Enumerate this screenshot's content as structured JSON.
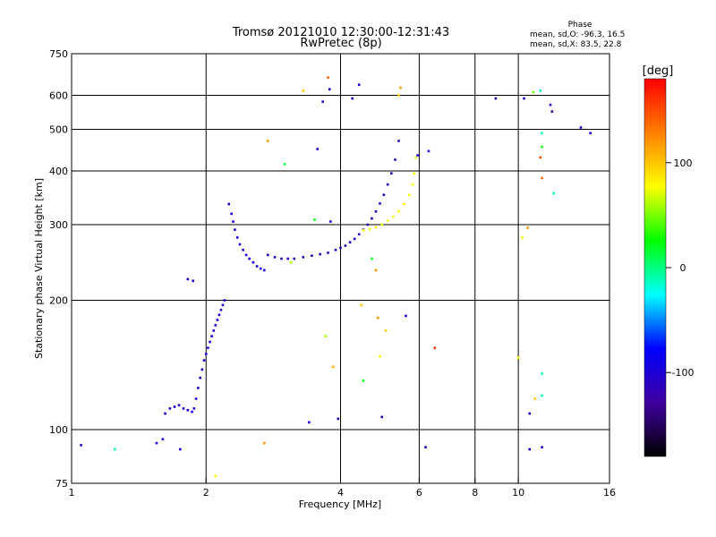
{
  "chart_data": {
    "type": "scatter",
    "title": "Tromsø 20121010 12:30:00-12:31:43",
    "subtitle": "RwPretec (8p)",
    "xlabel": "Frequency [MHz]",
    "ylabel": "Stationary phase Virtual Height [km]",
    "x_scale": "log",
    "y_scale": "log",
    "xlim": [
      1,
      16
    ],
    "ylim": [
      75,
      750
    ],
    "x_ticks": [
      1,
      2,
      4,
      6,
      8,
      10,
      16
    ],
    "x_tick_labels": [
      "1",
      "2",
      "4",
      "6",
      "8",
      "10",
      "16"
    ],
    "x_grid": [
      2,
      4,
      6,
      8,
      10
    ],
    "y_ticks": [
      75,
      100,
      200,
      300,
      400,
      500,
      600,
      750
    ],
    "y_tick_labels": [
      "75",
      "100",
      "200",
      "300",
      "400",
      "500",
      "600",
      "750"
    ],
    "y_grid": [
      100,
      200,
      300,
      400,
      500,
      600
    ],
    "grid": true,
    "phase_stats": {
      "header": "Phase",
      "line_o": "mean, sd,O: -96.3, 16.5",
      "line_x": "mean, sd,X:  83.5, 22.8"
    },
    "colorbar": {
      "label": "[deg]",
      "range": [
        -180,
        180
      ],
      "ticks": [
        100,
        0,
        -100
      ],
      "tick_labels": [
        "100",
        "0",
        "-100"
      ],
      "colors": [
        "#ff0000",
        "#ff8000",
        "#ffff00",
        "#00ff00",
        "#00ffff",
        "#0000ff",
        "#4000a0",
        "#000000"
      ]
    },
    "traces": [
      {
        "x": [
          1.62,
          1.66,
          1.7,
          1.74,
          1.78,
          1.82,
          1.86,
          1.88,
          1.9,
          1.92,
          1.94,
          1.96,
          1.98,
          2.0,
          2.02,
          2.04,
          2.06,
          2.08,
          2.1,
          2.12,
          2.14,
          2.16,
          2.18,
          2.2
        ],
        "y": [
          109,
          112,
          113,
          114,
          112,
          111,
          110,
          112,
          118,
          125,
          132,
          138,
          145,
          150,
          155,
          160,
          165,
          170,
          175,
          180,
          185,
          190,
          195,
          200
        ],
        "phase": -100
      },
      {
        "x": [
          2.25,
          2.28,
          2.3,
          2.32,
          2.35,
          2.38,
          2.42,
          2.46,
          2.5,
          2.55,
          2.6,
          2.65,
          2.7
        ],
        "y": [
          335,
          318,
          305,
          292,
          280,
          270,
          262,
          255,
          250,
          245,
          240,
          237,
          235
        ],
        "phase": -95
      },
      {
        "x": [
          2.75,
          2.85,
          2.95,
          3.05,
          3.15,
          3.3,
          3.45,
          3.6,
          3.75,
          3.9,
          4.0,
          4.1,
          4.2,
          4.3,
          4.4,
          4.5,
          4.6,
          4.7,
          4.8,
          4.9,
          5.0,
          5.1,
          5.2,
          5.3,
          5.4
        ],
        "y": [
          255,
          252,
          250,
          250,
          250,
          252,
          254,
          256,
          258,
          262,
          265,
          268,
          273,
          278,
          285,
          292,
          300,
          310,
          322,
          336,
          352,
          372,
          395,
          425,
          470
        ],
        "phase": -115
      },
      {
        "x": [
          4.5,
          4.65,
          4.8,
          4.95,
          5.1,
          5.25,
          5.4,
          5.55,
          5.7,
          5.8,
          5.85,
          5.9
        ],
        "y": [
          291,
          293,
          296,
          300,
          306,
          313,
          322,
          335,
          352,
          372,
          395,
          430
        ],
        "phase": 75
      }
    ],
    "points": [
      {
        "x": 1.05,
        "y": 92,
        "phase": -100
      },
      {
        "x": 1.25,
        "y": 90,
        "phase": -10
      },
      {
        "x": 1.55,
        "y": 93,
        "phase": -100
      },
      {
        "x": 1.6,
        "y": 95,
        "phase": -100
      },
      {
        "x": 1.75,
        "y": 90,
        "phase": -100
      },
      {
        "x": 1.82,
        "y": 224,
        "phase": -100
      },
      {
        "x": 1.87,
        "y": 222,
        "phase": -100
      },
      {
        "x": 2.1,
        "y": 78,
        "phase": 80
      },
      {
        "x": 2.7,
        "y": 93,
        "phase": 120
      },
      {
        "x": 2.75,
        "y": 470,
        "phase": 120
      },
      {
        "x": 3.0,
        "y": 415,
        "phase": 10
      },
      {
        "x": 3.1,
        "y": 245,
        "phase": 60
      },
      {
        "x": 3.4,
        "y": 104,
        "phase": -100
      },
      {
        "x": 3.5,
        "y": 308,
        "phase": 20
      },
      {
        "x": 3.55,
        "y": 450,
        "phase": -100
      },
      {
        "x": 3.75,
        "y": 660,
        "phase": 140
      },
      {
        "x": 3.78,
        "y": 620,
        "phase": -100
      },
      {
        "x": 3.65,
        "y": 580,
        "phase": -100
      },
      {
        "x": 3.3,
        "y": 615,
        "phase": 100
      },
      {
        "x": 3.7,
        "y": 165,
        "phase": 60
      },
      {
        "x": 3.8,
        "y": 305,
        "phase": -100
      },
      {
        "x": 3.85,
        "y": 140,
        "phase": 110
      },
      {
        "x": 3.95,
        "y": 106,
        "phase": -110
      },
      {
        "x": 4.25,
        "y": 590,
        "phase": -100
      },
      {
        "x": 4.4,
        "y": 635,
        "phase": -100
      },
      {
        "x": 4.45,
        "y": 195,
        "phase": 100
      },
      {
        "x": 4.5,
        "y": 130,
        "phase": 20
      },
      {
        "x": 4.7,
        "y": 250,
        "phase": 20
      },
      {
        "x": 4.8,
        "y": 235,
        "phase": 120
      },
      {
        "x": 4.85,
        "y": 182,
        "phase": 120
      },
      {
        "x": 4.9,
        "y": 148,
        "phase": 80
      },
      {
        "x": 4.95,
        "y": 107,
        "phase": -100
      },
      {
        "x": 5.05,
        "y": 170,
        "phase": 100
      },
      {
        "x": 5.4,
        "y": 600,
        "phase": 100
      },
      {
        "x": 5.45,
        "y": 625,
        "phase": 120
      },
      {
        "x": 5.6,
        "y": 184,
        "phase": -100
      },
      {
        "x": 5.95,
        "y": 435,
        "phase": -100
      },
      {
        "x": 6.2,
        "y": 91,
        "phase": -100
      },
      {
        "x": 6.3,
        "y": 445,
        "phase": -100
      },
      {
        "x": 6.5,
        "y": 155,
        "phase": 160
      },
      {
        "x": 8.9,
        "y": 590,
        "phase": -110
      },
      {
        "x": 10.0,
        "y": 147,
        "phase": 80
      },
      {
        "x": 10.2,
        "y": 280,
        "phase": 80
      },
      {
        "x": 10.3,
        "y": 590,
        "phase": -100
      },
      {
        "x": 10.5,
        "y": 295,
        "phase": 120
      },
      {
        "x": 10.6,
        "y": 109,
        "phase": -100
      },
      {
        "x": 10.6,
        "y": 90,
        "phase": -100
      },
      {
        "x": 10.8,
        "y": 610,
        "phase": 50
      },
      {
        "x": 10.9,
        "y": 118,
        "phase": 100
      },
      {
        "x": 11.2,
        "y": 615,
        "phase": -10
      },
      {
        "x": 11.3,
        "y": 490,
        "phase": -10
      },
      {
        "x": 11.3,
        "y": 455,
        "phase": 30
      },
      {
        "x": 11.2,
        "y": 430,
        "phase": 150
      },
      {
        "x": 11.3,
        "y": 385,
        "phase": 140
      },
      {
        "x": 11.3,
        "y": 135,
        "phase": -10
      },
      {
        "x": 11.3,
        "y": 120,
        "phase": -10
      },
      {
        "x": 11.3,
        "y": 91,
        "phase": -100
      },
      {
        "x": 11.8,
        "y": 570,
        "phase": -120
      },
      {
        "x": 11.9,
        "y": 550,
        "phase": -140
      },
      {
        "x": 12.0,
        "y": 355,
        "phase": -10
      },
      {
        "x": 13.8,
        "y": 505,
        "phase": -100
      },
      {
        "x": 14.5,
        "y": 490,
        "phase": -100
      }
    ]
  }
}
